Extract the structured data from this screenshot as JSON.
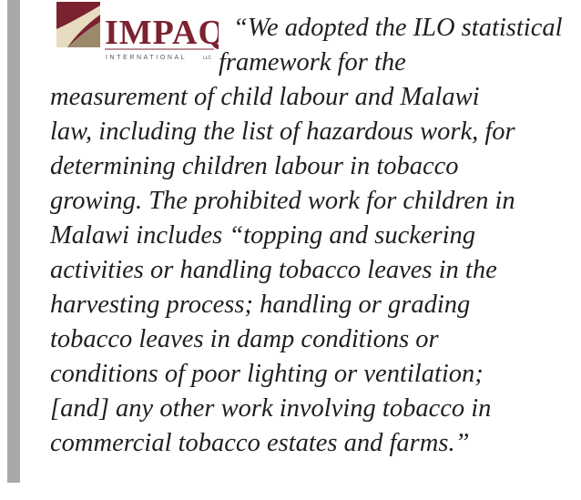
{
  "logo": {
    "name": "IMPAQ",
    "tagline": "INTERNATIONAL",
    "suffix": "LLC"
  },
  "quote": {
    "lines": [
      "“We adopted the ILO statistical",
      "framework for the",
      "measurement of child labour and Malawi",
      "law, including the list of hazardous work, for",
      "determining children labour in tobacco",
      "growing. The prohibited work for children in",
      "Malawi includes “topping and suckering",
      "activities or handling tobacco leaves in the",
      "harvesting process; handling or grading",
      "tobacco leaves in damp conditions or",
      "conditions of poor lighting or ventilation;",
      "[and] any other work involving tobacco in",
      "commercial tobacco estates and farms.”"
    ]
  }
}
